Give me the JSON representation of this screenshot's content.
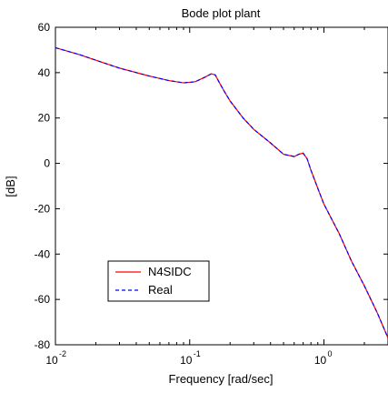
{
  "chart_data": {
    "type": "line",
    "title": "Bode plot plant",
    "xlabel": "Frequency [rad/sec]",
    "ylabel": "[dB]",
    "xscale": "log",
    "xlim": [
      0.01,
      3.0
    ],
    "ylim": [
      -80,
      60
    ],
    "yticks": [
      60,
      40,
      20,
      0,
      -20,
      -40,
      -60,
      -80
    ],
    "xticks": [
      {
        "value": 0.01,
        "base": "10",
        "exp": "-2"
      },
      {
        "value": 0.1,
        "base": "10",
        "exp": "-1"
      },
      {
        "value": 1,
        "base": "10",
        "exp": "0"
      }
    ],
    "grid": false,
    "legend_position": "lower-left",
    "series": [
      {
        "name": "N4SIDC",
        "color": "#ff0000",
        "style": "solid",
        "x": [
          0.01,
          0.015,
          0.02,
          0.03,
          0.05,
          0.07,
          0.09,
          0.11,
          0.13,
          0.145,
          0.155,
          0.165,
          0.18,
          0.2,
          0.25,
          0.3,
          0.4,
          0.5,
          0.55,
          0.6,
          0.65,
          0.7,
          0.75,
          0.8,
          0.9,
          1.0,
          1.3,
          1.6,
          2.0,
          2.5,
          3.0
        ],
        "y": [
          51,
          48,
          45.5,
          42,
          38.5,
          36.5,
          35.5,
          36,
          38,
          39.5,
          39,
          36,
          32,
          27.5,
          20,
          15,
          9,
          4,
          3.5,
          3,
          4,
          4.5,
          2,
          -3,
          -11,
          -18,
          -31,
          -43,
          -54,
          -66,
          -77
        ]
      },
      {
        "name": "Real",
        "color": "#0000ff",
        "style": "dashed",
        "x": [
          0.01,
          0.015,
          0.02,
          0.03,
          0.05,
          0.07,
          0.09,
          0.11,
          0.13,
          0.145,
          0.155,
          0.165,
          0.18,
          0.2,
          0.25,
          0.3,
          0.4,
          0.5,
          0.55,
          0.6,
          0.65,
          0.7,
          0.75,
          0.8,
          0.9,
          1.0,
          1.3,
          1.6,
          2.0,
          2.5,
          3.0
        ],
        "y": [
          51,
          48,
          45.5,
          42,
          38.5,
          36.5,
          35.5,
          36,
          38,
          39.5,
          39,
          36,
          32,
          27.5,
          20,
          15,
          9,
          4,
          3.5,
          3,
          4,
          4.5,
          2,
          -3,
          -11,
          -18,
          -31,
          -43,
          -54,
          -66,
          -77
        ]
      }
    ]
  }
}
